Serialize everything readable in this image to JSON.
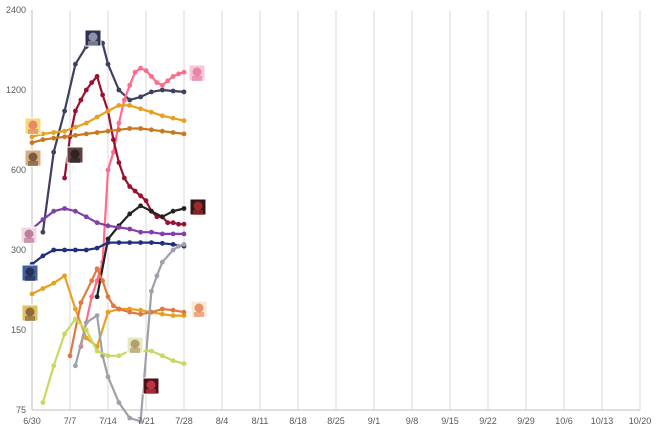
{
  "chart_data": {
    "type": "line",
    "title": "",
    "xlabel": "",
    "ylabel": "",
    "y_scale": "log",
    "ylim": [
      75,
      2400
    ],
    "y_ticks": [
      75,
      150,
      300,
      600,
      1200,
      2400
    ],
    "x_tick_labels": [
      "6/30",
      "7/7",
      "7/14",
      "7/21",
      "7/28",
      "8/4",
      "8/11",
      "8/18",
      "8/25",
      "9/1",
      "9/8",
      "9/15",
      "9/22",
      "9/29",
      "10/6",
      "10/13",
      "10/20"
    ],
    "xlim": [
      0,
      112
    ],
    "grid": "vertical",
    "legend": "character thumbnails beside series",
    "series": [
      {
        "color": "#3f3f5f",
        "x": [
          2,
          4,
          6,
          8,
          10,
          12,
          13,
          14,
          16,
          18,
          20,
          22,
          24,
          26,
          28
        ],
        "y": [
          350,
          700,
          1000,
          1500,
          1750,
          1920,
          1800,
          1500,
          1200,
          1100,
          1130,
          1180,
          1200,
          1190,
          1180
        ]
      },
      {
        "color": "#ff6b8a",
        "x": [
          9,
          11,
          12,
          13,
          14,
          15,
          16,
          17,
          18,
          19,
          20,
          21,
          22,
          23,
          24,
          25,
          26,
          27,
          28
        ],
        "y": [
          130,
          200,
          230,
          270,
          600,
          700,
          900,
          1100,
          1250,
          1400,
          1450,
          1420,
          1350,
          1280,
          1250,
          1300,
          1350,
          1380,
          1400
        ]
      },
      {
        "color": "#9b1030",
        "x": [
          6,
          7,
          8,
          9,
          10,
          11,
          12,
          13,
          14,
          15,
          16,
          17,
          18,
          19,
          20,
          21,
          22,
          23,
          24,
          25,
          26,
          27,
          28
        ],
        "y": [
          560,
          800,
          1000,
          1100,
          1200,
          1280,
          1350,
          1150,
          1000,
          780,
          640,
          560,
          520,
          500,
          480,
          460,
          420,
          400,
          400,
          380,
          380,
          375,
          375
        ]
      },
      {
        "color": "#e8a020",
        "x": [
          0,
          2,
          4,
          6,
          8,
          10,
          12,
          14,
          16,
          18,
          20,
          22,
          24,
          26,
          28
        ],
        "y": [
          800,
          820,
          830,
          840,
          870,
          900,
          950,
          1000,
          1050,
          1050,
          1020,
          990,
          960,
          940,
          920
        ]
      },
      {
        "color": "#c87820",
        "x": [
          0,
          2,
          4,
          6,
          8,
          10,
          12,
          14,
          16,
          18,
          20,
          22,
          24,
          26,
          28
        ],
        "y": [
          760,
          780,
          790,
          800,
          810,
          820,
          830,
          840,
          850,
          860,
          860,
          850,
          840,
          830,
          820
        ]
      },
      {
        "color": "#222222",
        "x": [
          12,
          14,
          16,
          18,
          20,
          22,
          24,
          26,
          28
        ],
        "y": [
          200,
          330,
          370,
          410,
          440,
          420,
          400,
          420,
          430
        ]
      },
      {
        "color": "#8040a8",
        "x": [
          0,
          2,
          4,
          6,
          8,
          10,
          12,
          14,
          16,
          18,
          20,
          22,
          24,
          26,
          28
        ],
        "y": [
          360,
          390,
          420,
          430,
          420,
          400,
          380,
          370,
          365,
          360,
          350,
          350,
          345,
          345,
          345
        ]
      },
      {
        "color": "#203080",
        "x": [
          0,
          2,
          4,
          6,
          8,
          10,
          12,
          14,
          16,
          18,
          20,
          22,
          24,
          26,
          28
        ],
        "y": [
          265,
          285,
          300,
          300,
          300,
          300,
          305,
          320,
          320,
          320,
          320,
          320,
          318,
          315,
          310
        ]
      },
      {
        "color": "#e8a020",
        "x": [
          0,
          2,
          4,
          6,
          8,
          10,
          12,
          14,
          16,
          18,
          20,
          22,
          24,
          26,
          28
        ],
        "y": [
          205,
          215,
          225,
          240,
          180,
          140,
          130,
          175,
          180,
          180,
          178,
          175,
          172,
          170,
          170
        ]
      },
      {
        "color": "#e07840",
        "x": [
          7,
          9,
          11,
          12,
          13,
          14,
          15,
          16,
          18,
          20,
          22,
          24,
          26,
          28
        ],
        "y": [
          120,
          190,
          230,
          255,
          230,
          200,
          185,
          180,
          175,
          172,
          175,
          180,
          178,
          175
        ]
      },
      {
        "color": "#a0a0a8",
        "x": [
          8,
          10,
          12,
          13,
          14,
          16,
          18,
          20,
          22,
          23,
          24,
          26,
          27,
          28
        ],
        "y": [
          110,
          160,
          170,
          120,
          100,
          80,
          70,
          68,
          210,
          240,
          270,
          300,
          310,
          315
        ]
      },
      {
        "color": "#c8d860",
        "x": [
          2,
          4,
          6,
          8,
          10,
          12,
          14,
          16,
          18,
          20,
          22,
          24,
          26,
          28
        ],
        "y": [
          80,
          110,
          145,
          165,
          150,
          125,
          120,
          120,
          125,
          125,
          125,
          120,
          115,
          112
        ]
      }
    ]
  }
}
